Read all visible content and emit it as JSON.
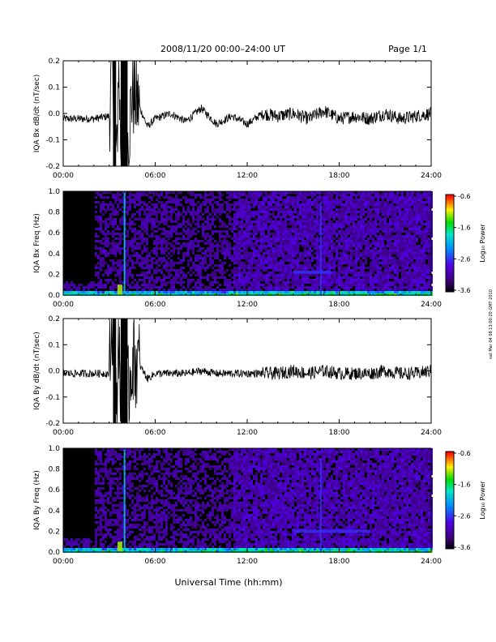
{
  "header": {
    "title": "2008/11/20  00:00–24:00 UT",
    "page": "Page 1/1"
  },
  "footer": {
    "xlabel": "Universal Time (hh:mm)",
    "stamp": "sat Mar 04 08 13:00:20 GMT 2010"
  },
  "chart_data": [
    {
      "type": "line",
      "ylabel": "IQA Bx dB/dt (nT/sec)",
      "x_ticks": [
        "00:00",
        "06:00",
        "12:00",
        "18:00",
        "24:00"
      ],
      "y_ticks": [
        "0.2",
        "0.1",
        "0.0",
        "-0.1",
        "-0.2"
      ],
      "xlim": [
        0,
        24
      ],
      "ylim": [
        -0.2,
        0.2
      ],
      "series": [
        {
          "x": [
            0,
            1,
            2,
            3,
            3.2,
            3.5,
            3.6,
            3.8,
            4.0,
            4.2,
            4.5,
            5.0,
            5.5,
            6.0,
            7.0,
            8.0,
            9.0,
            10.0,
            11.0,
            12.0,
            13.0,
            14.0,
            15.0,
            16.0,
            17.0,
            18.0,
            19.0,
            20.0,
            21.0,
            22.0,
            23.0,
            24.0
          ],
          "y": [
            -0.02,
            -0.02,
            -0.02,
            -0.01,
            0.2,
            -0.2,
            0.2,
            -0.2,
            0.2,
            -0.12,
            0.08,
            0.02,
            -0.05,
            -0.02,
            0.0,
            -0.03,
            0.02,
            -0.04,
            -0.01,
            -0.04,
            0.0,
            -0.01,
            0.0,
            -0.02,
            0.01,
            -0.02,
            -0.01,
            -0.02,
            0.0,
            -0.02,
            -0.01,
            0.0
          ]
        }
      ]
    },
    {
      "type": "heatmap",
      "ylabel": "IQA Bx Freq (Hz)",
      "x_ticks": [
        "00:00",
        "06:00",
        "12:00",
        "18:00",
        "24:00"
      ],
      "y_ticks": [
        "1.0",
        "0.8",
        "0.6",
        "0.4",
        "0.2",
        "0.0"
      ],
      "xlim": [
        0,
        24
      ],
      "ylim": [
        0,
        1
      ],
      "colorbar": {
        "label": "Log₁₀ Power",
        "ticks": [
          "-0.6",
          "-1.6",
          "-2.6",
          "-3.6"
        ],
        "range": [
          -3.6,
          -0.6
        ]
      },
      "features": [
        {
          "time": 3.7,
          "freq_max": 0.1,
          "power": -1.2
        },
        {
          "time": 4.0,
          "freq_max": 1.0,
          "power": -2.0
        },
        {
          "time": 16.8,
          "freq_max": 0.9,
          "power": -2.6
        },
        {
          "time_range": [
            15,
            17.5
          ],
          "freq": 0.22,
          "power": -2.6
        }
      ]
    },
    {
      "type": "line",
      "ylabel": "IQA By dB/dt (nT/sec)",
      "x_ticks": [
        "00:00",
        "06:00",
        "12:00",
        "18:00",
        "24:00"
      ],
      "y_ticks": [
        "0.2",
        "0.1",
        "0.0",
        "-0.1",
        "-0.2"
      ],
      "xlim": [
        0,
        24
      ],
      "ylim": [
        -0.2,
        0.2
      ],
      "series": [
        {
          "x": [
            0,
            1,
            2,
            3,
            3.2,
            3.5,
            3.6,
            3.8,
            4.0,
            4.2,
            4.5,
            5.0,
            5.5,
            6.0,
            7.0,
            8.0,
            9.0,
            10.0,
            11.0,
            12.0,
            13.0,
            14.0,
            15.0,
            16.0,
            17.0,
            18.0,
            19.0,
            20.0,
            21.0,
            22.0,
            23.0,
            24.0
          ],
          "y": [
            -0.01,
            -0.01,
            -0.01,
            -0.01,
            0.2,
            -0.2,
            0.2,
            -0.2,
            0.2,
            -0.1,
            0.05,
            0.02,
            -0.03,
            -0.01,
            -0.01,
            -0.01,
            0.0,
            -0.01,
            -0.01,
            -0.01,
            -0.01,
            -0.01,
            0.0,
            -0.01,
            0.0,
            -0.01,
            -0.01,
            -0.01,
            0.0,
            -0.01,
            -0.01,
            0.0
          ]
        }
      ]
    },
    {
      "type": "heatmap",
      "ylabel": "IQA By Freq (Hz)",
      "x_ticks": [
        "00:00",
        "06:00",
        "12:00",
        "18:00",
        "24:00"
      ],
      "y_ticks": [
        "1.0",
        "0.8",
        "0.6",
        "0.4",
        "0.2",
        "0.0"
      ],
      "xlim": [
        0,
        24
      ],
      "ylim": [
        0,
        1
      ],
      "colorbar": {
        "label": "Log₁₀ Power",
        "ticks": [
          "-0.6",
          "-1.6",
          "-2.6",
          "-3.6"
        ],
        "range": [
          -3.6,
          -0.6
        ]
      },
      "features": [
        {
          "time": 3.7,
          "freq_max": 0.1,
          "power": -1.2
        },
        {
          "time": 4.0,
          "freq_max": 1.0,
          "power": -2.0
        },
        {
          "time": 16.8,
          "freq_max": 0.9,
          "power": -2.6
        },
        {
          "time_range": [
            15,
            20
          ],
          "freq": 0.2,
          "power": -2.6
        }
      ]
    }
  ]
}
